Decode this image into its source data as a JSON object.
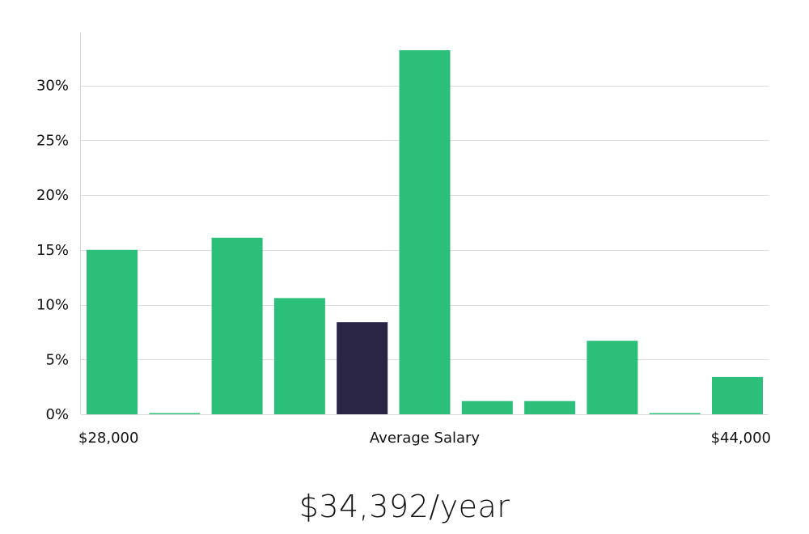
{
  "chart_data": {
    "type": "bar",
    "title": "",
    "xlabel": "Average Salary",
    "ylabel": "",
    "x_start_label": "$28,000",
    "x_end_label": "$44,000",
    "values": [
      15.0,
      0.1,
      16.1,
      10.6,
      8.4,
      33.2,
      1.2,
      1.2,
      6.7,
      0.1,
      3.4
    ],
    "highlight_index": 4,
    "ylim": [
      0,
      35
    ],
    "yticks": [
      0,
      5,
      10,
      15,
      20,
      25,
      30
    ],
    "ytick_labels": [
      "0%",
      "5%",
      "10%",
      "15%",
      "20%",
      "25%",
      "30%"
    ],
    "grid": true,
    "colors": {
      "bar": "#2bbf79",
      "highlight": "#2a2545",
      "grid": "#dcdcdc"
    }
  },
  "summary": {
    "salary_label": "$34,392/year"
  }
}
